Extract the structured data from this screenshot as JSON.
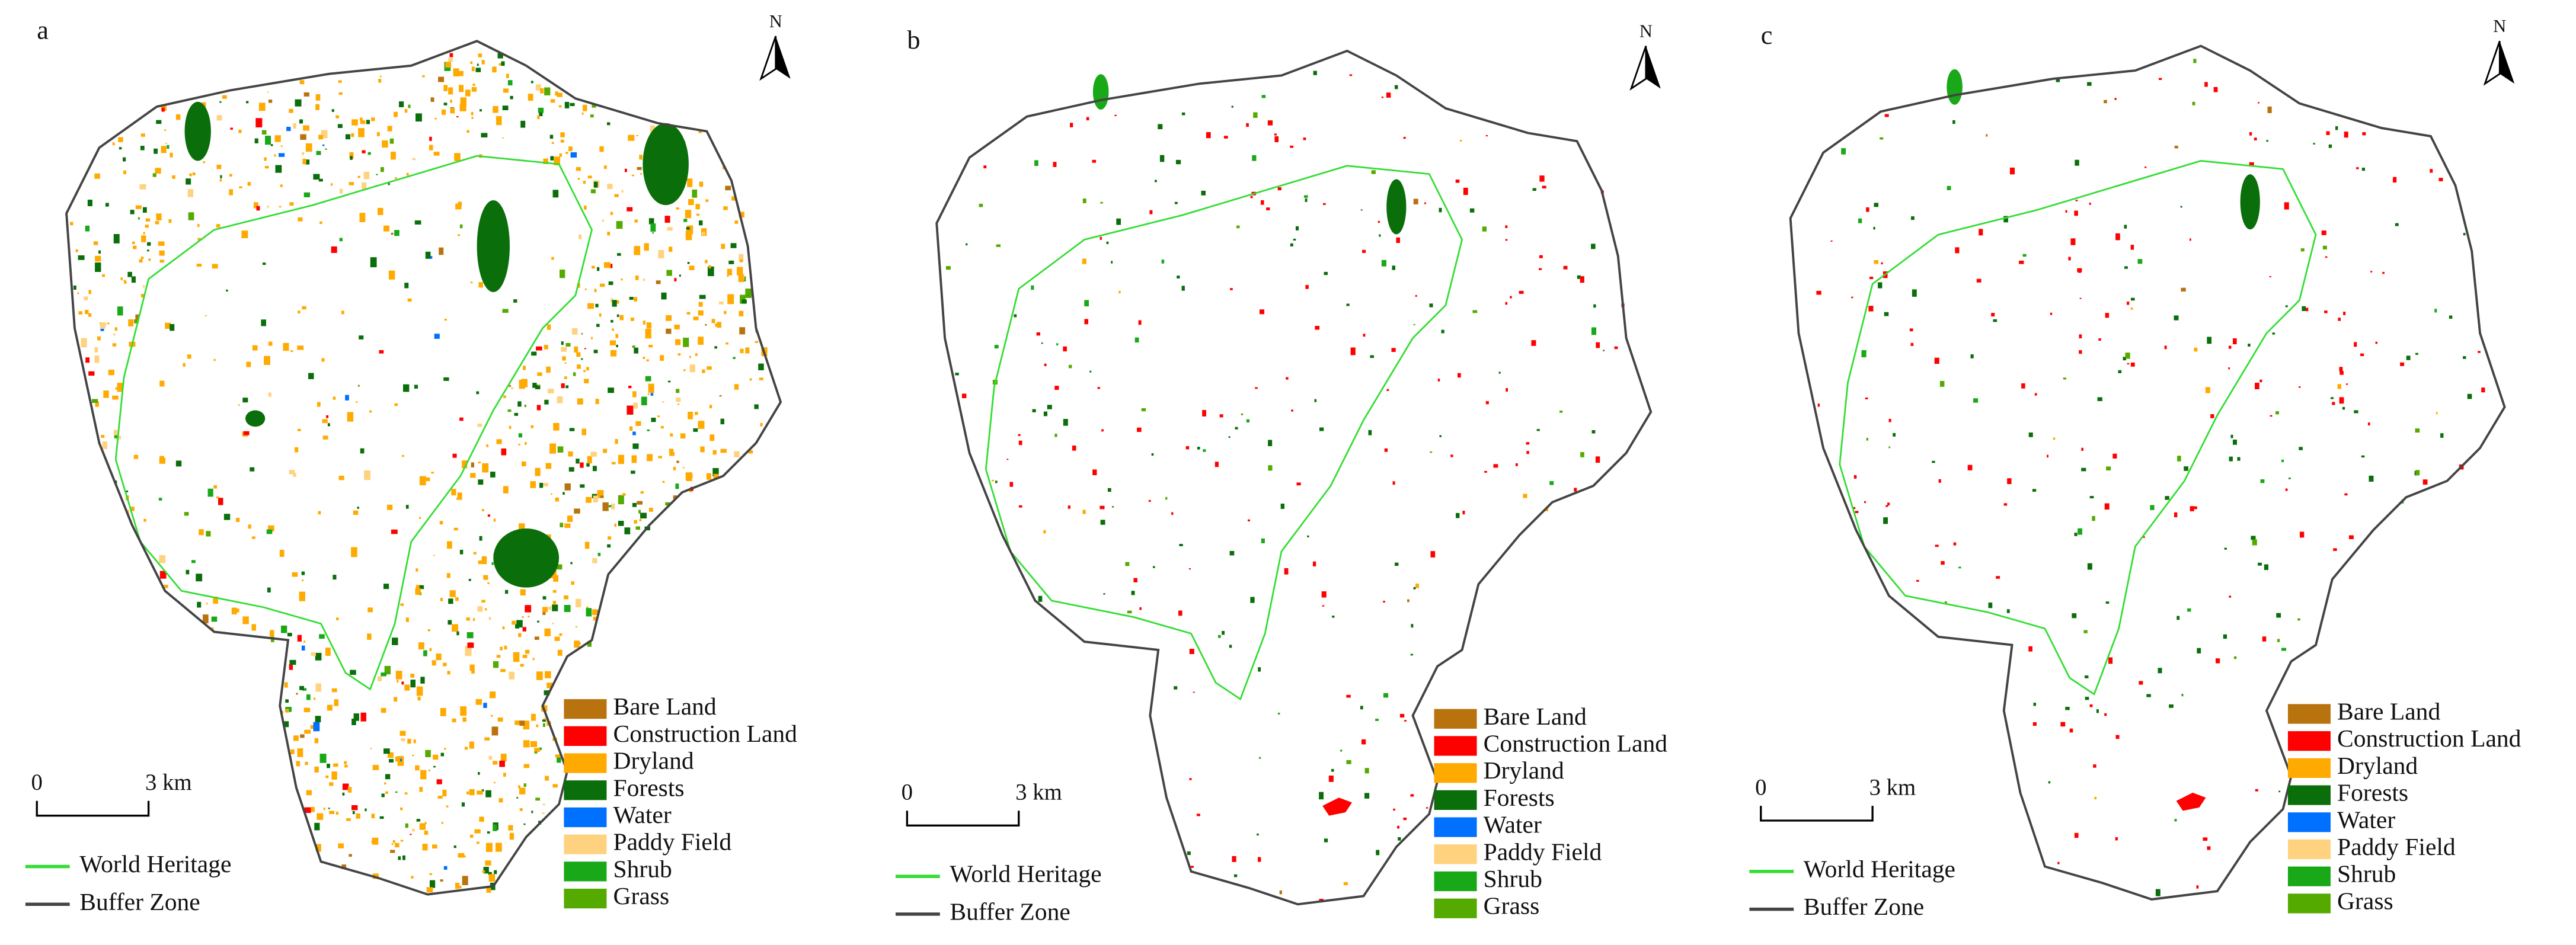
{
  "panels": [
    {
      "label": "a"
    },
    {
      "label": "b"
    },
    {
      "label": "c"
    }
  ],
  "legend": [
    {
      "name": "Bare Land",
      "color": "#b8720e"
    },
    {
      "name": "Construction Land",
      "color": "#ff0000"
    },
    {
      "name": "Dryland",
      "color": "#ffaa00"
    },
    {
      "name": "Forests",
      "color": "#0a6e0a"
    },
    {
      "name": "Water",
      "color": "#0070ff"
    },
    {
      "name": "Paddy Field",
      "color": "#ffd27f"
    },
    {
      "name": "Shrub",
      "color": "#18a818"
    },
    {
      "name": "Grass",
      "color": "#55aa00"
    }
  ],
  "boundaries": [
    {
      "name": "World Heritage",
      "color": "#33dd33"
    },
    {
      "name": "Buffer Zone",
      "color": "#444444"
    }
  ],
  "scale_bar": {
    "start": "0",
    "end": "3 km"
  },
  "north": "N"
}
